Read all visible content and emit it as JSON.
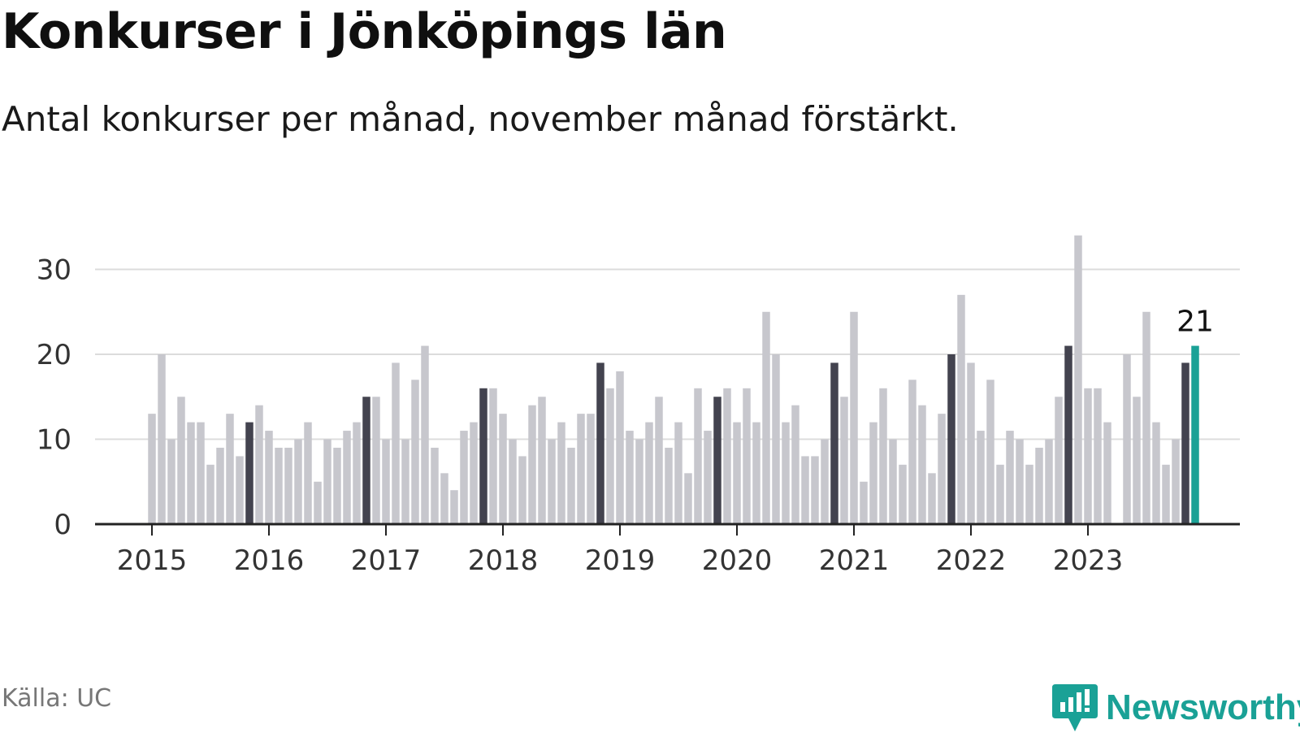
{
  "title": "Konkurser i Jönköpings län",
  "subtitle": "Antal konkurser per månad, november månad förstärkt.",
  "source": "Källa: UC",
  "brand": "Newsworthy",
  "icons": {
    "logo": "newsworthy-logo-icon"
  },
  "colors": {
    "normal": "#c7c7cd",
    "november": "#43434f",
    "latest": "#1aa196",
    "grid": "#dcdcdc",
    "axis": "#222222",
    "text": "#333333"
  },
  "chart_data": {
    "type": "bar",
    "title": "Konkurser i Jönköpings län",
    "subtitle": "Antal konkurser per månad, november månad förstärkt.",
    "xlabel": "",
    "ylabel": "",
    "ylim": [
      0,
      34
    ],
    "yticks": [
      0,
      10,
      20,
      30
    ],
    "xticks": [
      "2015",
      "2016",
      "2017",
      "2018",
      "2019",
      "2020",
      "2021",
      "2022",
      "2023"
    ],
    "start": "2015-01",
    "end": "2023-12",
    "highlight": "november",
    "grid": true,
    "values": [
      13,
      20,
      10,
      15,
      12,
      12,
      7,
      9,
      13,
      8,
      12,
      14,
      11,
      9,
      9,
      10,
      12,
      5,
      10,
      9,
      11,
      12,
      15,
      15,
      10,
      19,
      10,
      17,
      21,
      9,
      6,
      4,
      11,
      12,
      16,
      16,
      13,
      10,
      8,
      14,
      15,
      10,
      12,
      9,
      13,
      13,
      19,
      16,
      18,
      11,
      10,
      12,
      15,
      9,
      12,
      6,
      16,
      11,
      15,
      16,
      12,
      16,
      12,
      25,
      20,
      12,
      14,
      8,
      8,
      10,
      19,
      15,
      25,
      5,
      12,
      16,
      10,
      7,
      17,
      14,
      6,
      13,
      20,
      27,
      19,
      11,
      17,
      7,
      11,
      10,
      7,
      9,
      10,
      15,
      21,
      34,
      16,
      16,
      12,
      0,
      20,
      15,
      25,
      12,
      7,
      10,
      19,
      21
    ],
    "annotations": [
      {
        "x": "2023-12",
        "text": "21"
      }
    ]
  }
}
